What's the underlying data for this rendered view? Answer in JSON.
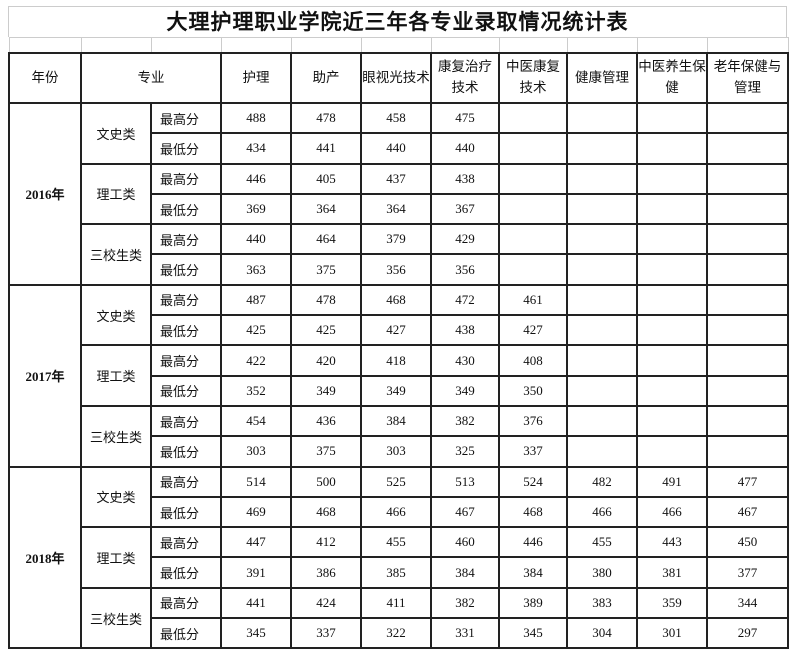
{
  "title": "大理护理职业学院近三年各专业录取情况统计表",
  "headers": {
    "year": "年份",
    "major": "专业",
    "columns": [
      "护理",
      "助产",
      "眼视光技术",
      "康复治疗技术",
      "中医康复技术",
      "健康管理",
      "中医养生保健",
      "老年保健与管理"
    ]
  },
  "years": [
    {
      "year": "2016年",
      "groups": [
        {
          "name": "文史类",
          "rows": [
            {
              "label": "最高分",
              "values": [
                "488",
                "478",
                "458",
                "475",
                "",
                "",
                "",
                ""
              ]
            },
            {
              "label": "最低分",
              "values": [
                "434",
                "441",
                "440",
                "440",
                "",
                "",
                "",
                ""
              ]
            }
          ]
        },
        {
          "name": "理工类",
          "rows": [
            {
              "label": "最高分",
              "values": [
                "446",
                "405",
                "437",
                "438",
                "",
                "",
                "",
                ""
              ]
            },
            {
              "label": "最低分",
              "values": [
                "369",
                "364",
                "364",
                "367",
                "",
                "",
                "",
                ""
              ]
            }
          ]
        },
        {
          "name": "三校生类",
          "rows": [
            {
              "label": "最高分",
              "values": [
                "440",
                "464",
                "379",
                "429",
                "",
                "",
                "",
                ""
              ]
            },
            {
              "label": "最低分",
              "values": [
                "363",
                "375",
                "356",
                "356",
                "",
                "",
                "",
                ""
              ]
            }
          ]
        }
      ]
    },
    {
      "year": "2017年",
      "groups": [
        {
          "name": "文史类",
          "rows": [
            {
              "label": "最高分",
              "values": [
                "487",
                "478",
                "468",
                "472",
                "461",
                "",
                "",
                ""
              ]
            },
            {
              "label": "最低分",
              "values": [
                "425",
                "425",
                "427",
                "438",
                "427",
                "",
                "",
                ""
              ]
            }
          ]
        },
        {
          "name": "理工类",
          "rows": [
            {
              "label": "最高分",
              "values": [
                "422",
                "420",
                "418",
                "430",
                "408",
                "",
                "",
                ""
              ]
            },
            {
              "label": "最低分",
              "values": [
                "352",
                "349",
                "349",
                "349",
                "350",
                "",
                "",
                ""
              ]
            }
          ]
        },
        {
          "name": "三校生类",
          "rows": [
            {
              "label": "最高分",
              "values": [
                "454",
                "436",
                "384",
                "382",
                "376",
                "",
                "",
                ""
              ]
            },
            {
              "label": "最低分",
              "values": [
                "303",
                "375",
                "303",
                "325",
                "337",
                "",
                "",
                ""
              ]
            }
          ]
        }
      ]
    },
    {
      "year": "2018年",
      "groups": [
        {
          "name": "文史类",
          "rows": [
            {
              "label": "最高分",
              "values": [
                "514",
                "500",
                "525",
                "513",
                "524",
                "482",
                "491",
                "477"
              ]
            },
            {
              "label": "最低分",
              "values": [
                "469",
                "468",
                "466",
                "467",
                "468",
                "466",
                "466",
                "467"
              ]
            }
          ]
        },
        {
          "name": "理工类",
          "rows": [
            {
              "label": "最高分",
              "values": [
                "447",
                "412",
                "455",
                "460",
                "446",
                "455",
                "443",
                "450"
              ]
            },
            {
              "label": "最低分",
              "values": [
                "391",
                "386",
                "385",
                "384",
                "384",
                "380",
                "381",
                "377"
              ]
            }
          ]
        },
        {
          "name": "三校生类",
          "rows": [
            {
              "label": "最高分",
              "values": [
                "441",
                "424",
                "411",
                "382",
                "389",
                "383",
                "359",
                "344"
              ]
            },
            {
              "label": "最低分",
              "values": [
                "345",
                "337",
                "322",
                "331",
                "345",
                "304",
                "301",
                "297"
              ]
            }
          ]
        }
      ]
    }
  ]
}
